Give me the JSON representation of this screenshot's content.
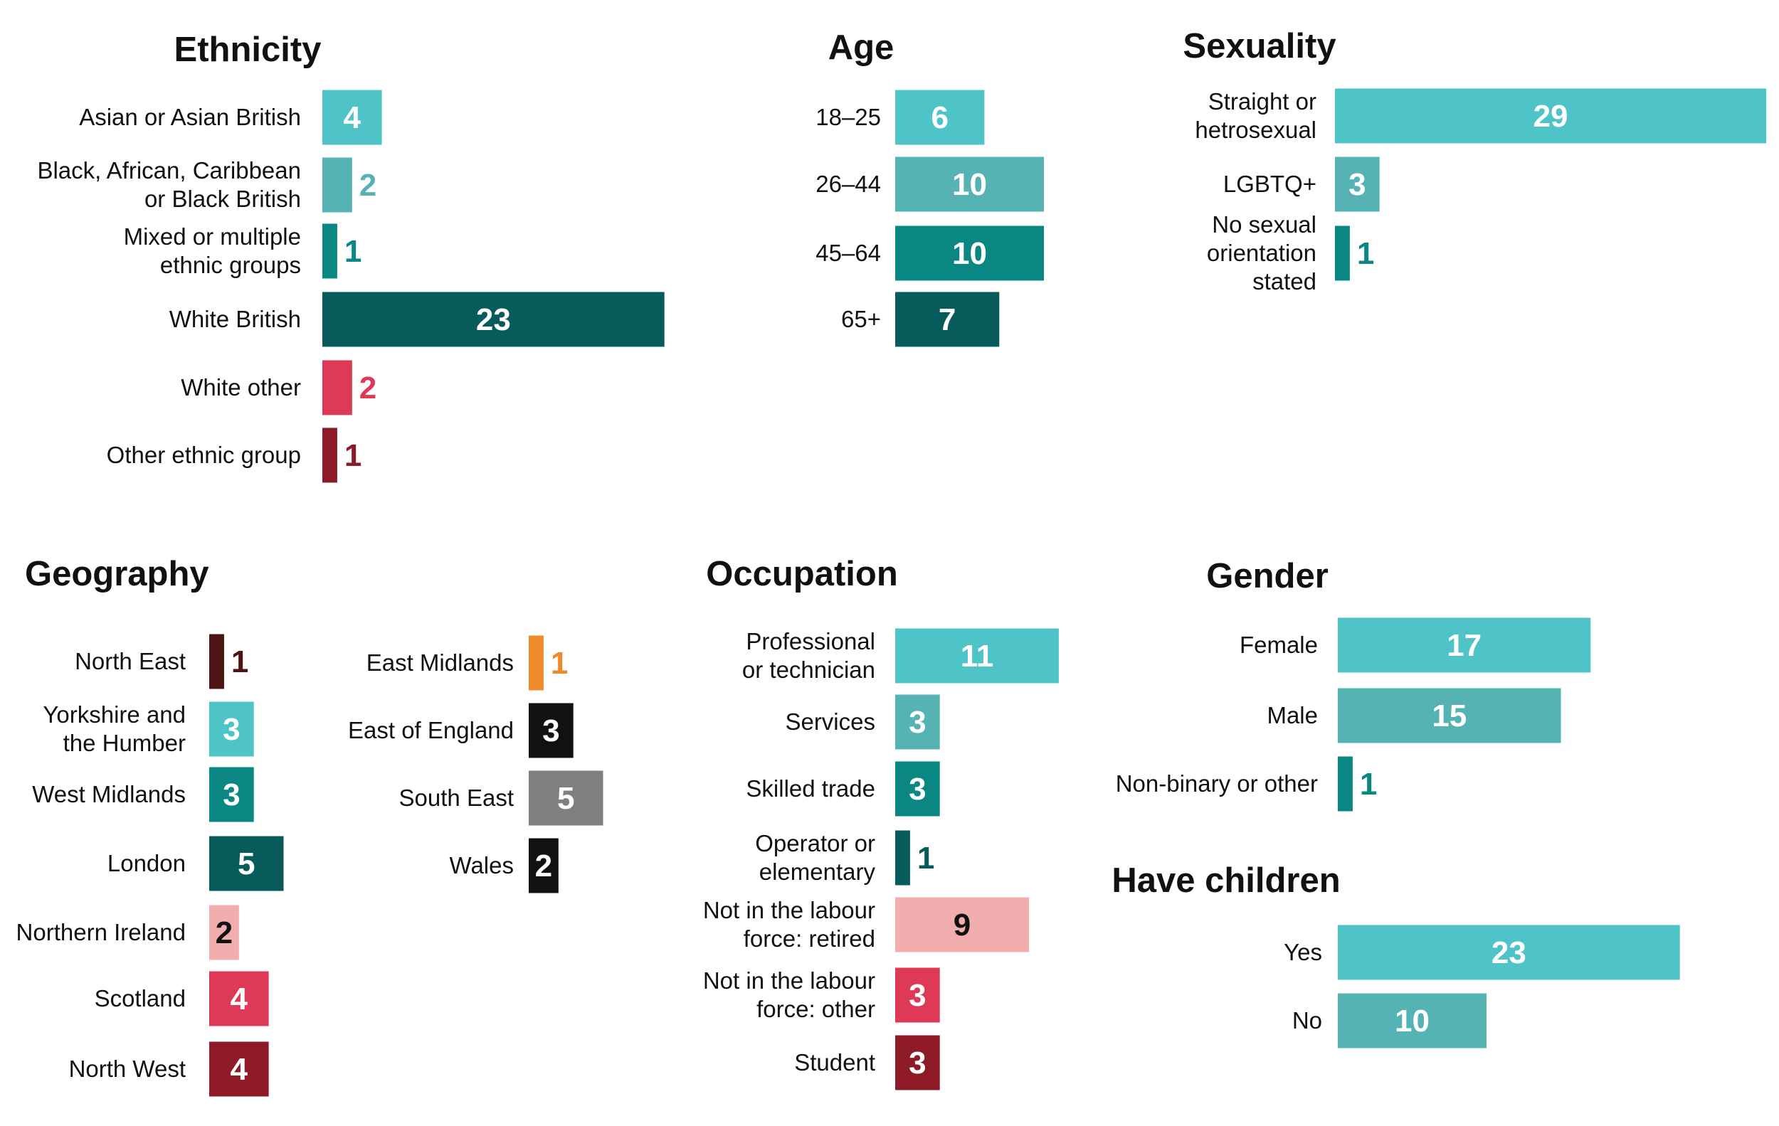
{
  "palette": {
    "light_teal": "#4fc4c8",
    "mid_teal": "#55b4b3",
    "teal": "#0a8783",
    "dark_teal": "#075c5b",
    "pink_light": "#f2aeae",
    "pink": "#de3956",
    "maroon": "#8e1a27",
    "dark_maroon": "#4d1414",
    "orange": "#ee8a2a",
    "black": "#111111",
    "grey": "#808080"
  },
  "chart_data": [
    {
      "type": "bar",
      "orientation": "horizontal",
      "title": "Ethnicity",
      "categories": [
        "Asian or Asian British",
        "Black, African, Caribbean or Black British",
        "Mixed or multiple ethnic groups",
        "White British",
        "White other",
        "Other ethnic group"
      ],
      "labels": [
        [
          "Asian or Asian British"
        ],
        [
          "Black, African, Caribbean",
          "or Black British"
        ],
        [
          "Mixed or multiple",
          "ethnic groups"
        ],
        [
          "White British"
        ],
        [
          "White other"
        ],
        [
          "Other ethnic group"
        ]
      ],
      "values": [
        4,
        2,
        1,
        23,
        2,
        1
      ],
      "colors": [
        "#4fc4c8",
        "#55b4b3",
        "#0a8783",
        "#075c5b",
        "#de3956",
        "#8e1a27"
      ]
    },
    {
      "type": "bar",
      "orientation": "horizontal",
      "title": "Age",
      "categories": [
        "18–25",
        "26–44",
        "45–64",
        "65+"
      ],
      "labels": [
        [
          "18–25"
        ],
        [
          "26–44"
        ],
        [
          "45–64"
        ],
        [
          "65+"
        ]
      ],
      "values": [
        6,
        10,
        10,
        7
      ],
      "colors": [
        "#4fc4c8",
        "#55b4b3",
        "#0a8783",
        "#075c5b"
      ]
    },
    {
      "type": "bar",
      "orientation": "horizontal",
      "title": "Sexuality",
      "categories": [
        "Straight or hetrosexual",
        "LGBTQ+",
        "No sexual orientation stated"
      ],
      "labels": [
        [
          "Straight or",
          "hetrosexual"
        ],
        [
          "LGBTQ+"
        ],
        [
          "No sexual",
          "orientation",
          "stated"
        ]
      ],
      "values": [
        29,
        3,
        1
      ],
      "colors": [
        "#4fc4c8",
        "#55b4b3",
        "#0a8783"
      ]
    },
    {
      "type": "bar",
      "orientation": "horizontal",
      "title": "Geography",
      "categories": [
        "North East",
        "Yorkshire and the Humber",
        "West Midlands",
        "London",
        "Northern Ireland",
        "Scotland",
        "North West",
        "East Midlands",
        "East of England",
        "South East",
        "Wales"
      ],
      "labels": [
        [
          "North East"
        ],
        [
          "Yorkshire and",
          "the Humber"
        ],
        [
          "West Midlands"
        ],
        [
          "London"
        ],
        [
          "Northern Ireland"
        ],
        [
          "Scotland"
        ],
        [
          "North West"
        ],
        [
          "East Midlands"
        ],
        [
          "East of England"
        ],
        [
          "South East"
        ],
        [
          "Wales"
        ]
      ],
      "values": [
        1,
        3,
        3,
        5,
        2,
        4,
        4,
        1,
        3,
        5,
        2
      ],
      "colors": [
        "#4d1414",
        "#4fc4c8",
        "#0a8783",
        "#075c5b",
        "#f2aeae",
        "#de3956",
        "#8e1a27",
        "#ee8a2a",
        "#111111",
        "#808080",
        "#111111"
      ]
    },
    {
      "type": "bar",
      "orientation": "horizontal",
      "title": "Occupation",
      "categories": [
        "Professional or technician",
        "Services",
        "Skilled trade",
        "Operator or elementary",
        "Not in the labour force: retired",
        "Not in the labour force: other",
        "Student"
      ],
      "labels": [
        [
          "Professional",
          "or technician"
        ],
        [
          "Services"
        ],
        [
          "Skilled trade"
        ],
        [
          "Operator or",
          "elementary"
        ],
        [
          "Not in the labour",
          "force: retired"
        ],
        [
          "Not in the labour",
          "force: other"
        ],
        [
          "Student"
        ]
      ],
      "values": [
        11,
        3,
        3,
        1,
        9,
        3,
        3
      ],
      "colors": [
        "#4fc4c8",
        "#55b4b3",
        "#0a8783",
        "#075c5b",
        "#f2aeae",
        "#de3956",
        "#8e1a27"
      ]
    },
    {
      "type": "bar",
      "orientation": "horizontal",
      "title": "Gender",
      "categories": [
        "Female",
        "Male",
        "Non-binary or other"
      ],
      "labels": [
        [
          "Female"
        ],
        [
          "Male"
        ],
        [
          "Non-binary or other"
        ]
      ],
      "values": [
        17,
        15,
        1
      ],
      "colors": [
        "#4fc4c8",
        "#55b4b3",
        "#0a8783"
      ]
    },
    {
      "type": "bar",
      "orientation": "horizontal",
      "title": "Have children",
      "categories": [
        "Yes",
        "No"
      ],
      "labels": [
        [
          "Yes"
        ],
        [
          "No"
        ]
      ],
      "values": [
        23,
        10
      ],
      "colors": [
        "#4fc4c8",
        "#55b4b3"
      ]
    }
  ]
}
